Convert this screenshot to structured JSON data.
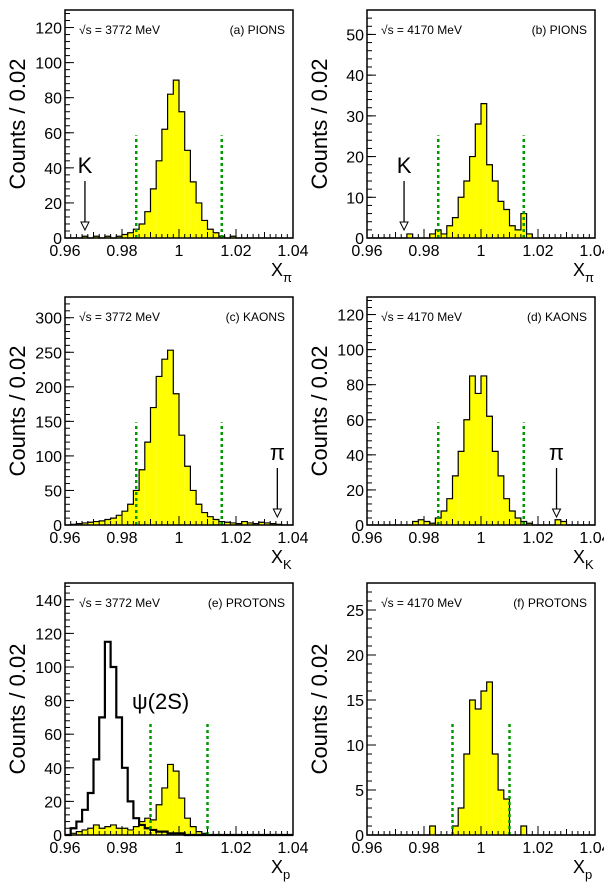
{
  "figure": {
    "ylabel": "Counts / 0.02",
    "xticks": [
      "0.96",
      "0.98",
      "1",
      "1.02",
      "1.04"
    ],
    "colors": {
      "fill": "#ffff00",
      "line": "#000000",
      "cut": "#009900"
    }
  },
  "chart_data": [
    {
      "id": "a",
      "type": "bar",
      "title": "(a) PIONS",
      "energy": "√s = 3772 MeV",
      "xlabel_base": "X",
      "xlabel_sub": "π",
      "xlim": [
        0.96,
        1.04
      ],
      "ylim": [
        0,
        130
      ],
      "yticks": [
        "0",
        "20",
        "40",
        "60",
        "80",
        "100",
        "120"
      ],
      "bin_start": 0.96,
      "bin_width": 0.002,
      "values": [
        0,
        0,
        0,
        1,
        0,
        1,
        0,
        1,
        0,
        1,
        2,
        3,
        5,
        8,
        15,
        28,
        44,
        62,
        82,
        90,
        72,
        50,
        32,
        20,
        10,
        5,
        3,
        1,
        0,
        1,
        0,
        0,
        0,
        0,
        0,
        0,
        0,
        0,
        0,
        0
      ],
      "cut_lines": [
        0.985,
        1.015
      ],
      "arrow": {
        "label": "K",
        "x": 0.967
      }
    },
    {
      "id": "b",
      "type": "bar",
      "title": "(b) PIONS",
      "energy": "√s = 4170 MeV",
      "xlabel_base": "X",
      "xlabel_sub": "π",
      "xlim": [
        0.96,
        1.04
      ],
      "ylim": [
        0,
        56
      ],
      "yticks": [
        "0",
        "10",
        "20",
        "30",
        "40",
        "50"
      ],
      "bin_start": 0.96,
      "bin_width": 0.002,
      "values": [
        0,
        0,
        0,
        0,
        0,
        0,
        0,
        1,
        0,
        0,
        0,
        1,
        2,
        1,
        3,
        5,
        10,
        14,
        20,
        28,
        33,
        18,
        14,
        9,
        7,
        3,
        2,
        6,
        1,
        0,
        0,
        0,
        0,
        0,
        0,
        0,
        0,
        0,
        0,
        0
      ],
      "cut_lines": [
        0.985,
        1.015
      ],
      "arrow": {
        "label": "K",
        "x": 0.973
      }
    },
    {
      "id": "c",
      "type": "bar",
      "title": "(c) KAONS",
      "energy": "√s = 3772 MeV",
      "xlabel_base": "X",
      "xlabel_sub": "K",
      "xlim": [
        0.96,
        1.04
      ],
      "ylim": [
        0,
        330
      ],
      "yticks": [
        "0",
        "50",
        "100",
        "150",
        "200",
        "250",
        "300"
      ],
      "bin_start": 0.96,
      "bin_width": 0.002,
      "values": [
        0,
        1,
        2,
        3,
        4,
        5,
        6,
        8,
        10,
        14,
        20,
        30,
        50,
        80,
        120,
        170,
        215,
        240,
        253,
        190,
        130,
        85,
        50,
        30,
        18,
        12,
        8,
        5,
        4,
        3,
        2,
        5,
        3,
        2,
        4,
        3,
        2,
        1,
        0,
        0
      ],
      "cut_lines": [
        0.985,
        1.015
      ],
      "arrow": {
        "label": "π",
        "x": 1.0345
      }
    },
    {
      "id": "d",
      "type": "bar",
      "title": "(d) KAONS",
      "energy": "√s = 4170 MeV",
      "xlabel_base": "X",
      "xlabel_sub": "K",
      "xlim": [
        0.96,
        1.04
      ],
      "ylim": [
        0,
        130
      ],
      "yticks": [
        "0",
        "20",
        "40",
        "60",
        "80",
        "100",
        "120"
      ],
      "bin_start": 0.96,
      "bin_width": 0.002,
      "values": [
        0,
        0,
        0,
        0,
        0,
        0,
        0,
        0,
        2,
        3,
        2,
        1,
        4,
        8,
        15,
        28,
        42,
        60,
        85,
        75,
        85,
        62,
        42,
        28,
        15,
        8,
        4,
        2,
        1,
        0,
        0,
        0,
        0,
        3,
        2,
        0,
        0,
        0,
        0,
        0
      ],
      "cut_lines": [
        0.985,
        1.015
      ],
      "arrow": {
        "label": "π",
        "x": 1.0265
      }
    },
    {
      "id": "e",
      "type": "bar",
      "title": "(e) PROTONS",
      "energy": "√s = 3772 MeV",
      "xlabel_base": "X",
      "xlabel_sub": "p",
      "xlim": [
        0.96,
        1.04
      ],
      "ylim": [
        0,
        150
      ],
      "yticks": [
        "0",
        "20",
        "40",
        "60",
        "80",
        "100",
        "120",
        "140"
      ],
      "bin_start": 0.96,
      "bin_width": 0.002,
      "values": [
        0,
        1,
        2,
        3,
        4,
        6,
        4,
        5,
        6,
        4,
        4,
        3,
        5,
        8,
        10,
        9,
        18,
        28,
        42,
        38,
        22,
        10,
        5,
        2,
        1,
        0,
        0,
        0,
        0,
        0,
        0,
        0,
        0,
        0,
        0,
        0,
        0,
        0,
        0,
        0
      ],
      "cut_lines": [
        0.99,
        1.01
      ],
      "overlay": {
        "label": "ψ(2S)",
        "values": [
          0,
          4,
          8,
          15,
          25,
          45,
          70,
          115,
          100,
          70,
          40,
          20,
          10,
          6,
          4,
          3,
          2,
          2,
          1,
          1,
          1,
          0,
          0,
          0,
          0,
          0,
          0,
          0,
          0,
          0,
          0,
          0,
          0,
          0,
          0,
          0,
          0,
          0,
          0,
          0
        ]
      }
    },
    {
      "id": "f",
      "type": "bar",
      "title": "(f) PROTONS",
      "energy": "√s = 4170 MeV",
      "xlabel_base": "X",
      "xlabel_sub": "p",
      "xlim": [
        0.96,
        1.04
      ],
      "ylim": [
        0,
        28
      ],
      "yticks": [
        "0",
        "5",
        "10",
        "15",
        "20",
        "25"
      ],
      "bin_start": 0.96,
      "bin_width": 0.002,
      "values": [
        0,
        0,
        0,
        0,
        0,
        0,
        0,
        0,
        0,
        0,
        0,
        1,
        0,
        0,
        0,
        1,
        3,
        9,
        15,
        14,
        16,
        17,
        9,
        5,
        4,
        0,
        0,
        1,
        0,
        0,
        0,
        0,
        0,
        0,
        0,
        0,
        0,
        0,
        0,
        0
      ],
      "cut_lines": [
        0.99,
        1.01
      ]
    }
  ]
}
